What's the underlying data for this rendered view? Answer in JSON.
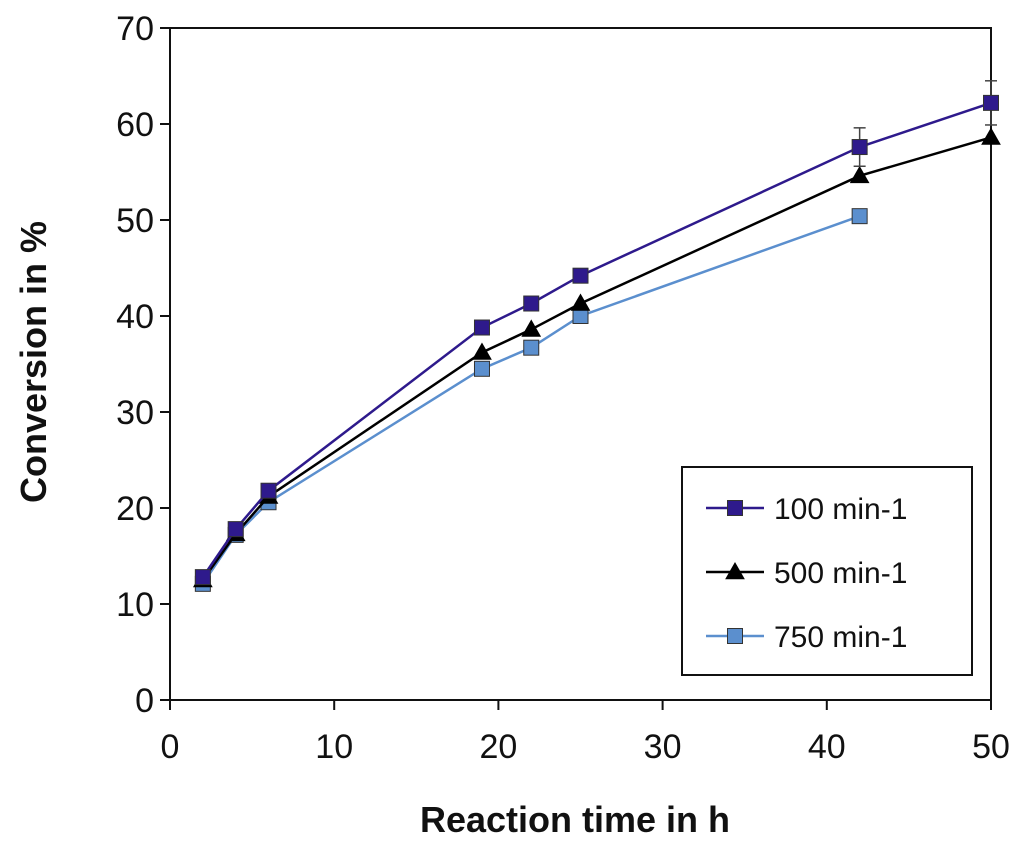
{
  "chart_data": {
    "type": "line",
    "title": "",
    "xlabel": "Reaction time in h",
    "ylabel": "Conversion in %",
    "xlim": [
      0,
      50
    ],
    "ylim": [
      0,
      70
    ],
    "xticks": [
      0,
      10,
      20,
      30,
      40,
      50
    ],
    "yticks": [
      0,
      10,
      20,
      30,
      40,
      50,
      60,
      70
    ],
    "grid": false,
    "legend_position": "bottom-right",
    "series": [
      {
        "name": "100 min-1",
        "marker": "square",
        "color": "#2e1a8c",
        "x": [
          2,
          4,
          6,
          19,
          22,
          25,
          42,
          50
        ],
        "y": [
          12.8,
          17.8,
          21.8,
          38.8,
          41.3,
          44.2,
          57.6,
          62.2
        ],
        "error": [
          0,
          0,
          0,
          0,
          0,
          0,
          2.0,
          2.3
        ]
      },
      {
        "name": "500 min-1",
        "marker": "triangle",
        "color": "#000000",
        "x": [
          2,
          4,
          6,
          19,
          22,
          25,
          42,
          50
        ],
        "y": [
          12.5,
          17.3,
          21.2,
          36.2,
          38.6,
          41.3,
          54.6,
          58.6
        ],
        "error": [
          0,
          0,
          0,
          0,
          0,
          0,
          0,
          0
        ]
      },
      {
        "name": "750 min-1",
        "marker": "square",
        "color": "#5b8fce",
        "x": [
          2,
          4,
          6,
          19,
          22,
          25,
          42
        ],
        "y": [
          12.1,
          17.2,
          20.6,
          34.5,
          36.7,
          40.0,
          50.4
        ],
        "error": [
          0,
          0,
          0,
          0,
          0,
          0,
          0
        ]
      }
    ]
  }
}
